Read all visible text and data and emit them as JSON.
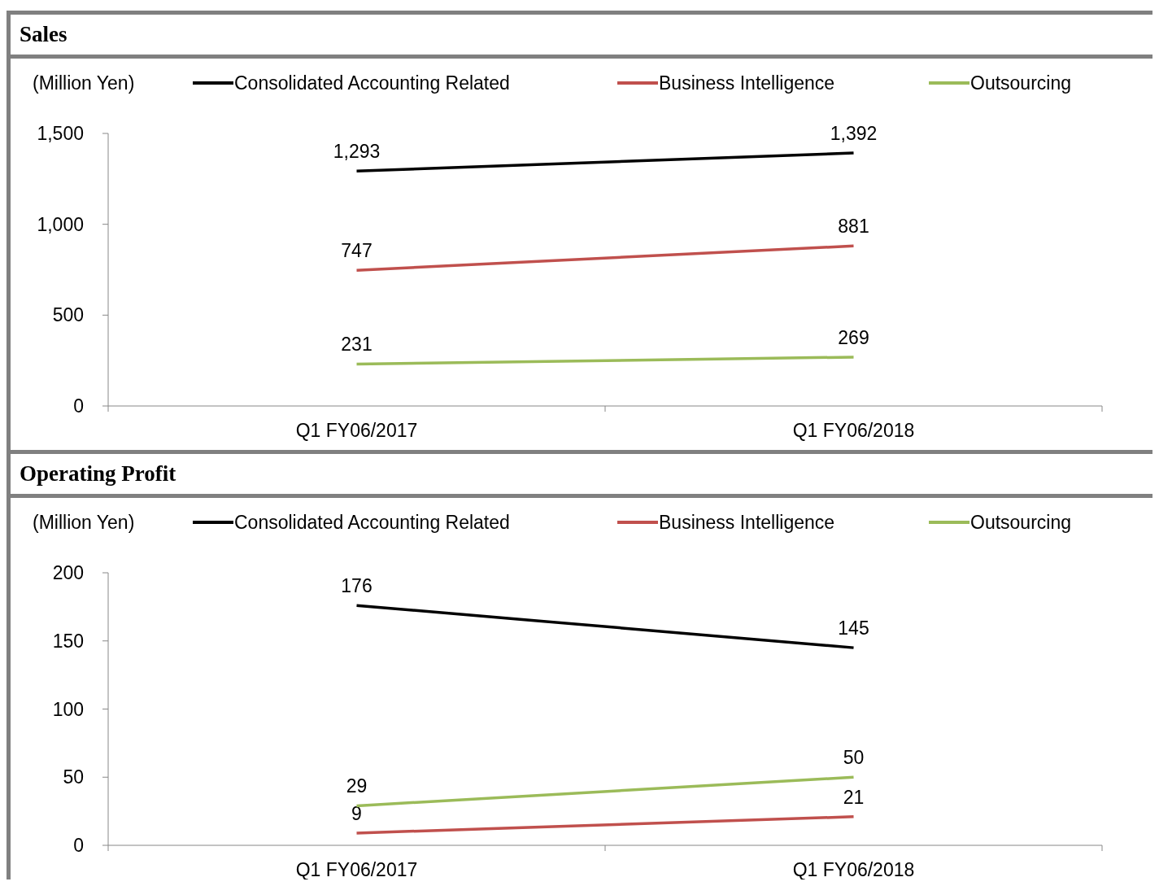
{
  "chart_data": [
    {
      "type": "line",
      "title": "Sales",
      "ylabel": "(Million Yen)",
      "categories": [
        "Q1 FY06/2017",
        "Q1 FY06/2018"
      ],
      "series": [
        {
          "name": "Consolidated Accounting Related",
          "color": "#000000",
          "values": [
            1293,
            1392
          ],
          "value_labels": [
            "1,293",
            "1,392"
          ]
        },
        {
          "name": "Business Intelligence",
          "color": "#c0504d",
          "values": [
            747,
            881
          ],
          "value_labels": [
            "747",
            "881"
          ]
        },
        {
          "name": "Outsourcing",
          "color": "#9bbb59",
          "values": [
            231,
            269
          ],
          "value_labels": [
            "231",
            "269"
          ]
        }
      ],
      "ylim": [
        0,
        1500
      ],
      "yticks": [
        0,
        500,
        {
          "value": 1000,
          "label": "1,000"
        },
        {
          "value": 1500,
          "label": "1,500"
        }
      ],
      "legend": "top",
      "grid": false,
      "marker": "none"
    },
    {
      "type": "line",
      "title": "Operating Profit",
      "ylabel": "(Million Yen)",
      "categories": [
        "Q1 FY06/2017",
        "Q1 FY06/2018"
      ],
      "series": [
        {
          "name": "Consolidated Accounting Related",
          "color": "#000000",
          "values": [
            176,
            145
          ],
          "value_labels": [
            "176",
            "145"
          ]
        },
        {
          "name": "Business Intelligence",
          "color": "#c0504d",
          "values": [
            9,
            21
          ],
          "value_labels": [
            "9",
            "21"
          ]
        },
        {
          "name": "Outsourcing",
          "color": "#9bbb59",
          "values": [
            29,
            50
          ],
          "value_labels": [
            "29",
            "50"
          ]
        }
      ],
      "ylim": [
        0,
        200
      ],
      "yticks": [
        0,
        50,
        100,
        150,
        200
      ],
      "legend": "top",
      "grid": false,
      "marker": "none"
    }
  ]
}
